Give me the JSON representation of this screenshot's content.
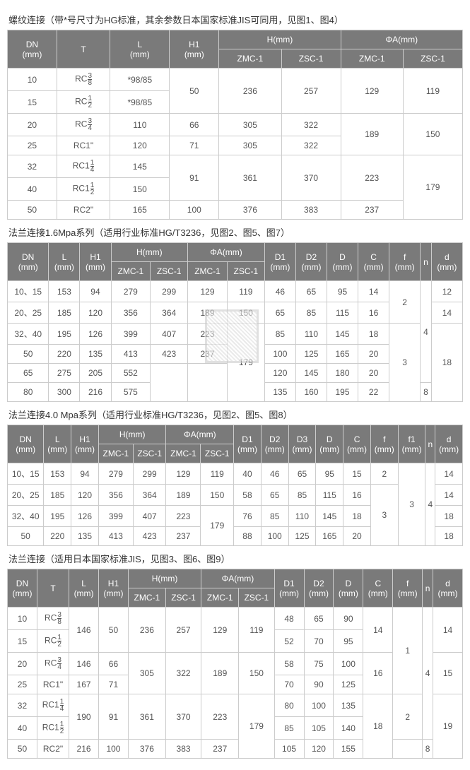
{
  "section1": {
    "title": "螺纹连接（带*号尺寸为HG标准，其余参数日本国家标准JIS可同用，见图1、图4）",
    "headers": {
      "dn": "DN\n(mm)",
      "t": "T",
      "l": "L\n(mm)",
      "h1": "H1\n(mm)",
      "h": "H(mm)",
      "phia": "ΦA(mm)",
      "zmc": "ZMC-1",
      "zsc": "ZSC-1"
    },
    "rows": [
      {
        "dn": "10",
        "t": "RC⅜",
        "l": "*98/85",
        "h1": "50",
        "h_zmc": "236",
        "h_zsc": "257",
        "a_zmc": "129",
        "a_zsc": "119"
      },
      {
        "dn": "15",
        "t": "RC½",
        "l": "*98/85"
      },
      {
        "dn": "20",
        "t": "RC¾",
        "l": "110",
        "h1": "66",
        "h_zmc": "305",
        "h_zsc": "322",
        "a_zmc": "189",
        "a_zsc": "150"
      },
      {
        "dn": "25",
        "t": "RC1\"",
        "l": "120",
        "h1": "71",
        "h_zmc": "305",
        "h_zsc": "322"
      },
      {
        "dn": "32",
        "t": "RC1¼",
        "l": "145",
        "h1": "91",
        "h_zmc": "361",
        "h_zsc": "370",
        "a_zmc": "223",
        "a_zsc": "179"
      },
      {
        "dn": "40",
        "t": "RC1½",
        "l": "150"
      },
      {
        "dn": "50",
        "t": "RC2\"",
        "l": "165",
        "h1": "100",
        "h_zmc": "376",
        "h_zsc": "383",
        "a_zmc": "237"
      }
    ]
  },
  "section2": {
    "title": "法兰连接1.6Mpa系列（适用行业标准HG/T3236，见图2、图5、图7）",
    "h": {
      "dn": "DN\n(mm)",
      "l": "L\n(mm)",
      "h1": "H1\n(mm)",
      "h": "H(mm)",
      "phia": "ΦA(mm)",
      "d1": "D1\n(mm)",
      "d2": "D2\n(mm)",
      "d": "D\n(mm)",
      "c": "C\n(mm)",
      "f": "f\n(mm)",
      "n": "n",
      "dd": "d\n(mm)",
      "zmc": "ZMC-1",
      "zsc": "ZSC-1"
    },
    "rows": [
      [
        "10、15",
        "153",
        "94",
        "279",
        "299",
        "129",
        "119",
        "46",
        "65",
        "95",
        "14",
        "2",
        "",
        "12"
      ],
      [
        "20、25",
        "185",
        "120",
        "356",
        "364",
        "189",
        "150",
        "65",
        "85",
        "115",
        "16",
        "",
        "",
        "14"
      ],
      [
        "32、40",
        "195",
        "126",
        "399",
        "407",
        "223",
        "179",
        "85",
        "110",
        "145",
        "18",
        "",
        "4",
        ""
      ],
      [
        "50",
        "220",
        "135",
        "413",
        "423",
        "237",
        "",
        "100",
        "125",
        "165",
        "20",
        "3",
        "",
        "18"
      ],
      [
        "65",
        "275",
        "205",
        "552",
        "",
        "",
        "",
        "120",
        "145",
        "180",
        "20",
        "",
        "",
        ""
      ],
      [
        "80",
        "300",
        "216",
        "575",
        "",
        "",
        "",
        "135",
        "160",
        "195",
        "22",
        "",
        "8",
        ""
      ]
    ]
  },
  "section3": {
    "title": "法兰连接4.0 Mpa系列（适用行业标准HG/T3236，见图2、图5、图8）",
    "h": {
      "dn": "DN\n(mm)",
      "l": "L\n(mm)",
      "h1": "H1\n(mm)",
      "h": "H(mm)",
      "phia": "ΦA(mm)",
      "d1": "D1\n(mm)",
      "d2": "D2\n(mm)",
      "d3": "D3\n(mm)",
      "d": "D\n(mm)",
      "c": "C\n(mm)",
      "f": "f\n(mm)",
      "f1": "f1\n(mm)",
      "n": "n",
      "dd": "d\n(mm)",
      "zmc": "ZMC-1",
      "zsc": "ZSC-1"
    },
    "rows": [
      [
        "10、15",
        "153",
        "94",
        "279",
        "299",
        "129",
        "119",
        "40",
        "46",
        "65",
        "95",
        "15",
        "2",
        "",
        "",
        "14"
      ],
      [
        "20、25",
        "185",
        "120",
        "356",
        "364",
        "189",
        "150",
        "58",
        "65",
        "85",
        "115",
        "16",
        "",
        "3",
        "4",
        "14"
      ],
      [
        "32、40",
        "195",
        "126",
        "399",
        "407",
        "223",
        "179",
        "76",
        "85",
        "110",
        "145",
        "18",
        "3",
        "",
        "",
        "18"
      ],
      [
        "50",
        "220",
        "135",
        "413",
        "423",
        "237",
        "",
        "88",
        "100",
        "125",
        "165",
        "20",
        "",
        "",
        "",
        "18"
      ]
    ]
  },
  "section4": {
    "title": "法兰连接（适用日本国家标准JIS，见图3、图6、图9）",
    "h": {
      "dn": "DN\n(mm)",
      "t": "T",
      "l": "L\n(mm)",
      "h1": "H1\n(mm)",
      "h": "H(mm)",
      "phia": "ΦA(mm)",
      "d1": "D1\n(mm)",
      "d2": "D2\n(mm)",
      "d": "D\n(mm)",
      "c": "C\n(mm)",
      "f": "f\n(mm)",
      "n": "n",
      "dd": "d\n(mm)",
      "zmc": "ZMC-1",
      "zsc": "ZSC-1"
    },
    "rows": [
      [
        "10",
        "RC⅜",
        "146",
        "50",
        "236",
        "257",
        "129",
        "119",
        "48",
        "65",
        "90",
        "14",
        "",
        "",
        "14"
      ],
      [
        "15",
        "RC½",
        "",
        "",
        "",
        "",
        "",
        "",
        "52",
        "70",
        "95",
        "",
        "1",
        "",
        ""
      ],
      [
        "20",
        "RC¾",
        "146",
        "66",
        "305",
        "322",
        "189",
        "150",
        "58",
        "75",
        "100",
        "16",
        "",
        "4",
        "15"
      ],
      [
        "25",
        "RC1\"",
        "167",
        "71",
        "",
        "",
        "",
        "",
        "70",
        "90",
        "125",
        "",
        "",
        "",
        ""
      ],
      [
        "32",
        "RC1¼",
        "190",
        "91",
        "361",
        "370",
        "223",
        "179",
        "80",
        "100",
        "135",
        "18",
        "2",
        "",
        "19"
      ],
      [
        "40",
        "RC1½",
        "",
        "",
        "",
        "",
        "",
        "",
        "85",
        "105",
        "140",
        "",
        "",
        "",
        ""
      ],
      [
        "50",
        "RC2\"",
        "216",
        "100",
        "376",
        "383",
        "237",
        "",
        "105",
        "120",
        "155",
        "",
        "",
        "8",
        ""
      ]
    ]
  }
}
